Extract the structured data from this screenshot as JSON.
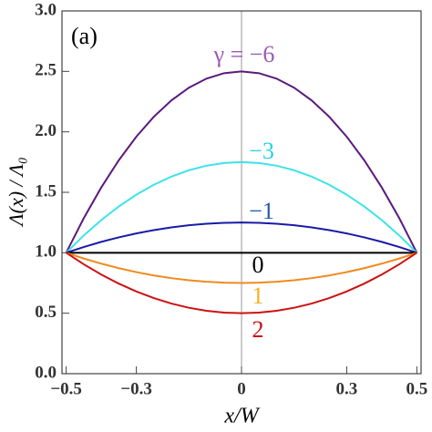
{
  "chart_data": {
    "type": "line",
    "annotation": "(a)",
    "x_label": "x/W",
    "y_label": "Λ(x) / Λ₀",
    "x": [
      -0.5,
      -0.45,
      -0.4,
      -0.35,
      -0.3,
      -0.25,
      -0.2,
      -0.15,
      -0.1,
      -0.05,
      0,
      0.05,
      0.1,
      0.15,
      0.2,
      0.25,
      0.3,
      0.35,
      0.4,
      0.45,
      0.5
    ],
    "series": [
      {
        "name": "γ = −6",
        "color": "#5a1a7c",
        "label_color": "#9b5cb6",
        "values": [
          1,
          1.285,
          1.54,
          1.765,
          1.96,
          2.125,
          2.26,
          2.365,
          2.44,
          2.485,
          2.5,
          2.485,
          2.44,
          2.365,
          2.26,
          2.125,
          1.96,
          1.765,
          1.54,
          1.285,
          1
        ]
      },
      {
        "name": "−3",
        "color": "#3be3e8",
        "label_color": "#2ccfe0",
        "values": [
          1,
          1.1425,
          1.27,
          1.3825,
          1.48,
          1.5625,
          1.63,
          1.6825,
          1.72,
          1.7425,
          1.75,
          1.7425,
          1.72,
          1.6825,
          1.63,
          1.5625,
          1.48,
          1.3825,
          1.27,
          1.1425,
          1
        ]
      },
      {
        "name": "−1",
        "color": "#1a1aa8",
        "label_color": "#1f5aa8",
        "values": [
          1,
          1.0475,
          1.09,
          1.1275,
          1.16,
          1.1875,
          1.21,
          1.2275,
          1.24,
          1.2475,
          1.25,
          1.2475,
          1.24,
          1.2275,
          1.21,
          1.1875,
          1.16,
          1.1275,
          1.09,
          1.0475,
          1
        ]
      },
      {
        "name": "0",
        "color": "#000000",
        "label_color": "#000000",
        "values": [
          1,
          1,
          1,
          1,
          1,
          1,
          1,
          1,
          1,
          1,
          1,
          1,
          1,
          1,
          1,
          1,
          1,
          1,
          1,
          1,
          1
        ]
      },
      {
        "name": "1",
        "color": "#ef8a1e",
        "label_color": "#f0b21e",
        "values": [
          1,
          0.9525,
          0.91,
          0.8725,
          0.84,
          0.8125,
          0.79,
          0.7725,
          0.76,
          0.7525,
          0.75,
          0.7525,
          0.76,
          0.7725,
          0.79,
          0.8125,
          0.84,
          0.8725,
          0.91,
          0.9525,
          1
        ]
      },
      {
        "name": "2",
        "color": "#cc1111",
        "label_color": "#cc1111",
        "values": [
          1,
          0.905,
          0.82,
          0.745,
          0.68,
          0.625,
          0.58,
          0.545,
          0.52,
          0.505,
          0.5,
          0.505,
          0.52,
          0.545,
          0.58,
          0.625,
          0.68,
          0.745,
          0.82,
          0.905,
          1
        ]
      }
    ],
    "xlim": [
      -0.512,
      0.512
    ],
    "ylim": [
      0,
      3
    ],
    "xticks": [
      {
        "value": -0.5,
        "label": "−0.5"
      },
      {
        "value": -0.3,
        "label": "−0.3"
      },
      0,
      0.3,
      0.5
    ],
    "yticks": [
      {
        "value": 0,
        "label": "0.0"
      },
      0.5,
      {
        "value": 1,
        "label": "1.0"
      },
      1.5,
      {
        "value": 2,
        "label": "2.0"
      },
      2.5,
      {
        "value": 3,
        "label": "3.0"
      }
    ]
  }
}
